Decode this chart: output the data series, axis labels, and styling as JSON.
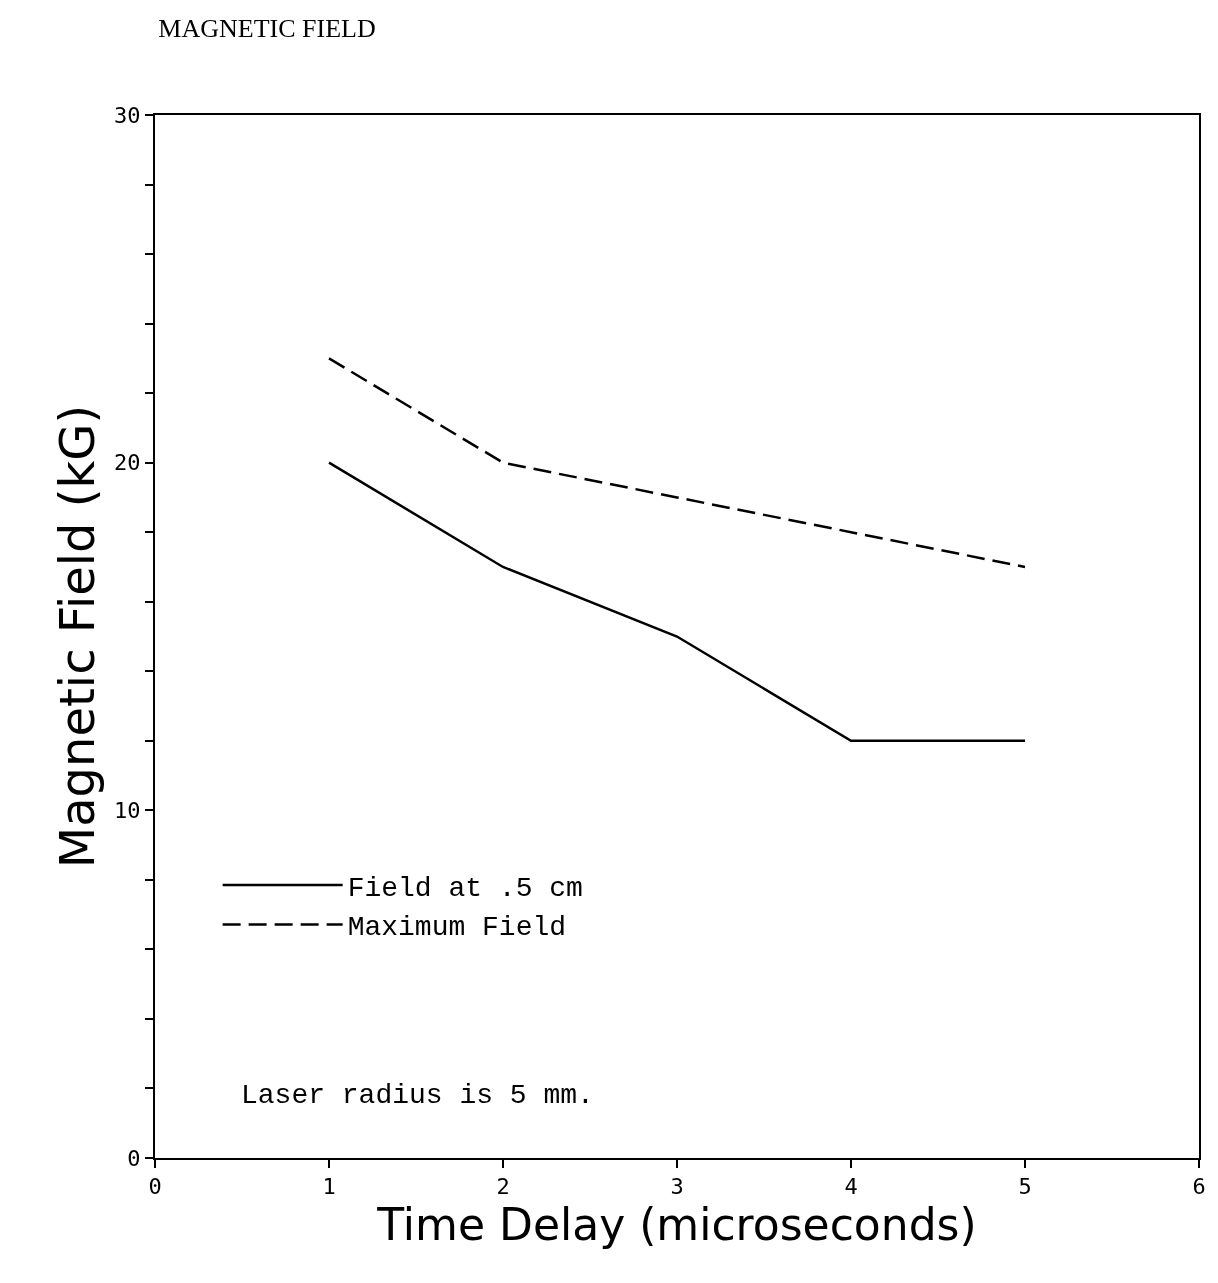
{
  "chart_data": {
    "type": "line",
    "title": "MAGNETIC FIELD",
    "xlabel": "Time Delay (microseconds)",
    "ylabel": "Magnetic Field (kG)",
    "x": [
      1,
      2,
      3,
      4,
      5
    ],
    "series": [
      {
        "name": "Field at .5 cm",
        "color": "#000000",
        "line_style": "solid",
        "values": [
          20,
          17,
          15,
          12,
          12
        ]
      },
      {
        "name": "Maximum Field",
        "color": "#000000",
        "line_style": "dashed",
        "values": [
          23,
          20,
          19,
          18,
          17
        ]
      }
    ],
    "xlim": [
      0,
      6
    ],
    "xticks": [
      0,
      1,
      2,
      3,
      4,
      5,
      6
    ],
    "ylim": [
      0,
      30
    ],
    "yticks": [
      0,
      {
        "value": 2,
        "label": null
      },
      {
        "value": 4,
        "label": null
      },
      {
        "value": 6,
        "label": null
      },
      {
        "value": 8,
        "label": null
      },
      10,
      {
        "value": 12,
        "label": null
      },
      {
        "value": 14,
        "label": null
      },
      {
        "value": 16,
        "label": null
      },
      {
        "value": 18,
        "label": null
      },
      20,
      {
        "value": 22,
        "label": null
      },
      {
        "value": 24,
        "label": null
      },
      {
        "value": 26,
        "label": null
      },
      {
        "value": 28,
        "label": null
      },
      30
    ],
    "annotations": [
      "Laser radius is 5 mm."
    ],
    "legend": "bottom left",
    "marker": "none"
  }
}
